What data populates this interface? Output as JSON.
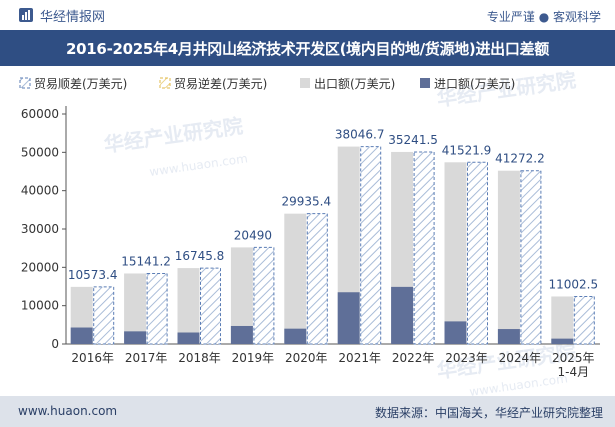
{
  "header": {
    "brand": "华经情报网",
    "slogan": "专业严谨 ● 客观科学"
  },
  "footer": {
    "website": "www.huaon.com",
    "source": "数据来源：中国海关，华经产业研究院整理"
  },
  "watermark": {
    "cn": "华经产业研究院",
    "en": "www.huaon.com"
  },
  "colors": {
    "header_bar": "#2f4e83",
    "surplus_stroke": "#5b7db5",
    "deficit_stroke": "#e0b84a",
    "export": "#d9d9d9",
    "import": "#5f6f98"
  },
  "chart_data": {
    "type": "bar",
    "title": "2016-2025年4月井冈山经济技术开发区(境内目的地/货源地)进出口差额",
    "legend_position": "top",
    "ylim": [
      0,
      60000
    ],
    "yticks": [
      0,
      10000,
      20000,
      30000,
      40000,
      50000,
      60000
    ],
    "grid": false,
    "categories": [
      "2016年",
      "2017年",
      "2018年",
      "2019年",
      "2020年",
      "2021年",
      "2022年",
      "2023年",
      "2024年",
      "2025年\n1-4月"
    ],
    "series": [
      {
        "name": "贸易顺差(万美元)",
        "values": [
          10573.4,
          15141.2,
          16745.8,
          20490,
          29935.4,
          38046.7,
          35241.5,
          41521.9,
          41272.2,
          11002.5
        ]
      },
      {
        "name": "贸易逆差(万美元)",
        "values": [
          null,
          null,
          null,
          null,
          null,
          null,
          null,
          null,
          null,
          null
        ]
      },
      {
        "name": "出口额(万美元)",
        "values": [
          14900,
          18400,
          19800,
          25200,
          34000,
          51500,
          50100,
          47400,
          45200,
          12400
        ]
      },
      {
        "name": "进口额(万美元)",
        "values": [
          4300,
          3300,
          3000,
          4700,
          4000,
          13500,
          14900,
          5900,
          3900,
          1400
        ]
      }
    ],
    "data_labels": [
      "10573.4",
      "15141.2",
      "16745.8",
      "20490",
      "29935.4",
      "38046.7",
      "35241.5",
      "41521.9",
      "41272.2",
      "11002.5"
    ]
  }
}
